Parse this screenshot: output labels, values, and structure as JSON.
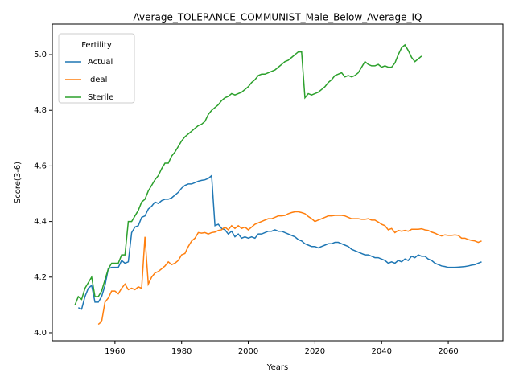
{
  "chart_data": {
    "type": "line",
    "title": "Average_TOLERANCE_COMMUNIST_Male_Below_Average_IQ",
    "xlabel": "Years",
    "ylabel": "Score(3-6)",
    "legend_title": "Fertility",
    "legend": "upper left",
    "xlim": [
      1941.2,
      2076.4
    ],
    "ylim": [
      3.971,
      5.11
    ],
    "xticks": [
      1960,
      1980,
      2000,
      2020,
      2040,
      2060
    ],
    "yticks": [
      {
        "value": 4,
        "label": "4.0"
      },
      4.2,
      4.4,
      4.6,
      4.8,
      {
        "value": 5,
        "label": "5.0"
      }
    ],
    "x": [
      1948,
      1949,
      1950,
      1951,
      1952,
      1953,
      1954,
      1955,
      1956,
      1957,
      1958,
      1959,
      1960,
      1961,
      1962,
      1963,
      1964,
      1965,
      1966,
      1967,
      1968,
      1969,
      1970,
      1971,
      1972,
      1973,
      1974,
      1975,
      1976,
      1977,
      1978,
      1979,
      1980,
      1981,
      1982,
      1983,
      1984,
      1985,
      1986,
      1987,
      1988,
      1989,
      1990,
      1991,
      1992,
      1993,
      1994,
      1995,
      1996,
      1997,
      1998,
      1999,
      2000,
      2001,
      2002,
      2003,
      2004,
      2005,
      2006,
      2007,
      2008,
      2009,
      2010,
      2011,
      2012,
      2013,
      2014,
      2015,
      2016,
      2017,
      2018,
      2019,
      2020,
      2021,
      2022,
      2023,
      2024,
      2025,
      2026,
      2027,
      2028,
      2029,
      2030,
      2031,
      2032,
      2033,
      2034,
      2035,
      2036,
      2037,
      2038,
      2039,
      2040,
      2041,
      2042,
      2043,
      2044,
      2045,
      2046,
      2047,
      2048,
      2049,
      2050,
      2051,
      2052,
      2053,
      2054,
      2055,
      2056,
      2057,
      2058,
      2059,
      2060,
      2061,
      2062,
      2063,
      2064,
      2065,
      2066,
      2067,
      2068,
      2069,
      2070
    ],
    "series": [
      {
        "name": "Actual",
        "color": "#1f77b4",
        "values": [
          null,
          4.09,
          4.085,
          4.13,
          4.16,
          4.17,
          4.11,
          4.11,
          4.13,
          4.17,
          4.23,
          4.235,
          4.235,
          4.235,
          4.26,
          4.25,
          4.255,
          4.36,
          4.38,
          4.385,
          4.415,
          4.42,
          4.445,
          4.455,
          4.47,
          4.465,
          4.475,
          4.48,
          4.48,
          4.485,
          4.495,
          4.505,
          4.52,
          4.53,
          4.535,
          4.535,
          4.54,
          4.545,
          4.548,
          4.55,
          4.555,
          4.565,
          4.385,
          4.39,
          4.375,
          4.37,
          4.355,
          4.365,
          4.345,
          4.355,
          4.34,
          4.345,
          4.34,
          4.345,
          4.34,
          4.355,
          4.355,
          4.36,
          4.365,
          4.365,
          4.37,
          4.365,
          4.365,
          4.36,
          4.355,
          4.35,
          4.345,
          4.335,
          4.33,
          4.32,
          4.315,
          4.31,
          4.31,
          4.305,
          4.31,
          4.315,
          4.32,
          4.32,
          4.325,
          4.325,
          4.32,
          4.315,
          4.31,
          4.3,
          4.295,
          4.29,
          4.285,
          4.28,
          4.28,
          4.275,
          4.27,
          4.27,
          4.265,
          4.26,
          4.25,
          4.255,
          4.25,
          4.26,
          4.255,
          4.265,
          4.26,
          4.275,
          4.27,
          4.28,
          4.275,
          4.275,
          4.265,
          4.26,
          4.25,
          4.245,
          4.24,
          4.238,
          4.235,
          4.235,
          4.235,
          4.236,
          4.237,
          4.238,
          4.24,
          4.243,
          4.245,
          4.25,
          4.255
        ]
      },
      {
        "name": "Ideal",
        "color": "#ff7f0e",
        "values": [
          null,
          null,
          null,
          null,
          null,
          null,
          null,
          4.03,
          4.04,
          4.11,
          4.125,
          4.15,
          4.15,
          4.14,
          4.16,
          4.175,
          4.155,
          4.16,
          4.155,
          4.165,
          4.16,
          4.345,
          4.175,
          4.2,
          4.215,
          4.22,
          4.23,
          4.24,
          4.255,
          4.245,
          4.25,
          4.26,
          4.28,
          4.285,
          4.31,
          4.33,
          4.34,
          4.36,
          4.358,
          4.36,
          4.355,
          4.36,
          4.362,
          4.368,
          4.37,
          4.38,
          4.37,
          4.385,
          4.375,
          4.385,
          4.375,
          4.38,
          4.37,
          4.38,
          4.39,
          4.395,
          4.4,
          4.405,
          4.41,
          4.41,
          4.415,
          4.42,
          4.42,
          4.422,
          4.428,
          4.432,
          4.435,
          4.435,
          4.432,
          4.428,
          4.418,
          4.41,
          4.4,
          4.405,
          4.41,
          4.415,
          4.42,
          4.42,
          4.422,
          4.422,
          4.422,
          4.42,
          4.415,
          4.41,
          4.41,
          4.41,
          4.408,
          4.408,
          4.41,
          4.405,
          4.405,
          4.398,
          4.39,
          4.385,
          4.37,
          4.375,
          4.36,
          4.368,
          4.365,
          4.368,
          4.365,
          4.372,
          4.372,
          4.372,
          4.374,
          4.37,
          4.368,
          4.362,
          4.358,
          4.352,
          4.348,
          4.352,
          4.35,
          4.35,
          4.352,
          4.35,
          4.34,
          4.34,
          4.335,
          4.332,
          4.33,
          4.325,
          4.33
        ]
      },
      {
        "name": "Sterile",
        "color": "#2ca02c",
        "values": [
          4.1,
          4.13,
          4.12,
          4.16,
          4.18,
          4.2,
          4.13,
          4.13,
          4.15,
          4.19,
          4.23,
          4.25,
          4.25,
          4.25,
          4.28,
          4.28,
          4.4,
          4.4,
          4.42,
          4.44,
          4.47,
          4.48,
          4.51,
          4.53,
          4.55,
          4.565,
          4.59,
          4.61,
          4.61,
          4.635,
          4.65,
          4.67,
          4.69,
          4.705,
          4.715,
          4.725,
          4.735,
          4.745,
          4.75,
          4.76,
          4.785,
          4.8,
          4.81,
          4.82,
          4.835,
          4.845,
          4.85,
          4.86,
          4.855,
          4.86,
          4.865,
          4.875,
          4.885,
          4.9,
          4.91,
          4.925,
          4.93,
          4.93,
          4.935,
          4.94,
          4.945,
          4.955,
          4.965,
          4.975,
          4.98,
          4.99,
          5.0,
          5.01,
          5.01,
          4.845,
          4.86,
          4.855,
          4.86,
          4.865,
          4.875,
          4.885,
          4.9,
          4.91,
          4.925,
          4.93,
          4.935,
          4.92,
          4.925,
          4.92,
          4.925,
          4.935,
          4.955,
          4.975,
          4.965,
          4.96,
          4.96,
          4.965,
          4.955,
          4.96,
          4.955,
          4.955,
          4.97,
          5.0,
          5.025,
          5.035,
          5.015,
          4.99,
          4.975,
          4.985,
          4.995,
          null,
          null,
          null,
          null,
          null,
          null,
          null,
          null,
          null,
          null,
          null,
          null,
          null,
          null,
          null,
          null,
          null,
          null
        ]
      }
    ]
  }
}
